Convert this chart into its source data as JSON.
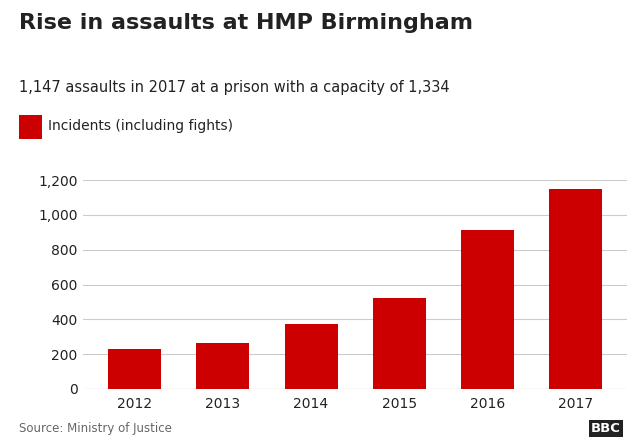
{
  "title": "Rise in assaults at HMP Birmingham",
  "subtitle": "1,147 assaults in 2017 at a prison with a capacity of 1,334",
  "legend_label": "Incidents (including fights)",
  "years": [
    "2012",
    "2013",
    "2014",
    "2015",
    "2016",
    "2017"
  ],
  "values": [
    230,
    265,
    375,
    520,
    915,
    1147
  ],
  "bar_color": "#cc0000",
  "background_color": "#ffffff",
  "yticks": [
    0,
    200,
    400,
    600,
    800,
    1000,
    1200
  ],
  "ylim": [
    0,
    1270
  ],
  "source_text": "Source: Ministry of Justice",
  "bbc_text": "BBC",
  "title_fontsize": 16,
  "subtitle_fontsize": 10.5,
  "legend_fontsize": 10,
  "tick_fontsize": 10,
  "source_fontsize": 8.5,
  "grid_color": "#cccccc",
  "text_color": "#222222",
  "source_color": "#666666"
}
